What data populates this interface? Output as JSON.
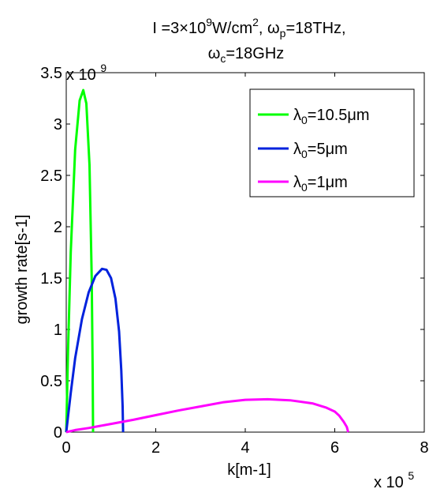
{
  "chart_data": {
    "type": "line",
    "title": "I =3×10⁹W/cm², ωp=18THz, ωc=18GHz",
    "xlabel": "k[m-1]",
    "ylabel": "growth rate[s-1]",
    "x_multiplier_label": "x 10",
    "x_multiplier_exp": "5",
    "y_multiplier_label": "x 10",
    "y_multiplier_exp": "9",
    "xlim": [
      0,
      8
    ],
    "ylim": [
      0,
      3.5
    ],
    "x_ticks": [
      0,
      2,
      4,
      6,
      8
    ],
    "x_tick_labels": [
      "0",
      "2",
      "4",
      "6",
      "8"
    ],
    "y_ticks": [
      0,
      0.5,
      1,
      1.5,
      2,
      2.5,
      3,
      3.5
    ],
    "y_tick_labels": [
      "0",
      "0.5",
      "1",
      "1.5",
      "2",
      "2.5",
      "3",
      "3.5"
    ],
    "x_units": "x 10^5 m^-1",
    "y_units": "x 10^9 s^-1",
    "grid": false,
    "legend_position": "top-right",
    "series": [
      {
        "name": "λ0=10.5μm",
        "color": "#00ff00",
        "peak_x": 0.38,
        "peak_y": 3.33,
        "cutoff_x": 0.6,
        "points": [
          [
            0,
            0
          ],
          [
            0.04,
            0.8
          ],
          [
            0.1,
            1.75
          ],
          [
            0.2,
            2.75
          ],
          [
            0.3,
            3.23
          ],
          [
            0.38,
            3.33
          ],
          [
            0.45,
            3.2
          ],
          [
            0.52,
            2.6
          ],
          [
            0.57,
            1.5
          ],
          [
            0.59,
            0.6
          ],
          [
            0.6,
            0
          ]
        ]
      },
      {
        "name": "λ0=5μm",
        "color": "#0022dd",
        "peak_x": 0.85,
        "peak_y": 1.59,
        "cutoff_x": 1.27,
        "points": [
          [
            0,
            0
          ],
          [
            0.1,
            0.38
          ],
          [
            0.2,
            0.72
          ],
          [
            0.35,
            1.1
          ],
          [
            0.5,
            1.36
          ],
          [
            0.65,
            1.52
          ],
          [
            0.8,
            1.59
          ],
          [
            0.9,
            1.58
          ],
          [
            1.0,
            1.5
          ],
          [
            1.1,
            1.3
          ],
          [
            1.18,
            0.98
          ],
          [
            1.23,
            0.6
          ],
          [
            1.26,
            0.25
          ],
          [
            1.27,
            0
          ]
        ]
      },
      {
        "name": "λ0=1μm",
        "color": "#ff00ff",
        "peak_x": 4.5,
        "peak_y": 0.32,
        "cutoff_x": 6.3,
        "points": [
          [
            0,
            0
          ],
          [
            0.2,
            0.02
          ],
          [
            0.5,
            0.04
          ],
          [
            1.0,
            0.08
          ],
          [
            1.5,
            0.12
          ],
          [
            2.0,
            0.165
          ],
          [
            2.5,
            0.21
          ],
          [
            3.0,
            0.25
          ],
          [
            3.5,
            0.29
          ],
          [
            4.0,
            0.315
          ],
          [
            4.5,
            0.32
          ],
          [
            5.0,
            0.31
          ],
          [
            5.5,
            0.28
          ],
          [
            5.8,
            0.24
          ],
          [
            6.0,
            0.2
          ],
          [
            6.1,
            0.16
          ],
          [
            6.2,
            0.1
          ],
          [
            6.27,
            0.05
          ],
          [
            6.3,
            0
          ]
        ]
      }
    ]
  }
}
